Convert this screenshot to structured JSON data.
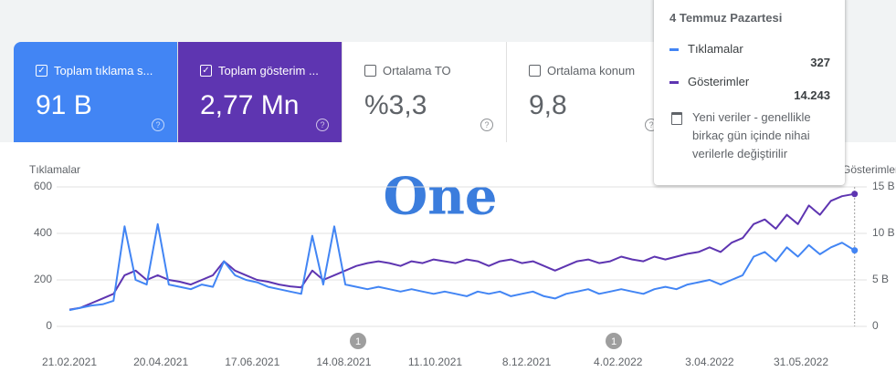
{
  "cards": [
    {
      "label": "Toplam tıklama s...",
      "value": "91 B",
      "checked": true
    },
    {
      "label": "Toplam gösterim ...",
      "value": "2,77 Mn",
      "checked": true
    },
    {
      "label": "Ortalama TO",
      "value": "%3,3",
      "checked": false
    },
    {
      "label": "Ortalama konum",
      "value": "9,8",
      "checked": false
    }
  ],
  "watermark": "One",
  "tooltip": {
    "title": "4 Temmuz Pazartesi",
    "rows": [
      {
        "name": "Tıklamalar",
        "value": "327"
      },
      {
        "name": "Gösterimler",
        "value": "14.243"
      }
    ],
    "note": "Yeni veriler - genellikle birkaç gün içinde nihai verilerle değiştirilir"
  },
  "annotations": [
    "1",
    "1"
  ],
  "chart_data": {
    "type": "line",
    "y_label": "Tıklamalar",
    "y2_label": "Gösterimler",
    "ylim": [
      0,
      600
    ],
    "yticks": [
      0,
      200,
      400,
      600
    ],
    "y2lim": [
      0,
      15000
    ],
    "y2ticks": [
      0,
      {
        "value": 5000,
        "label": "5 B"
      },
      {
        "value": 10000,
        "label": "10 B"
      },
      {
        "value": 15000,
        "label": "15 B"
      }
    ],
    "xticks": [
      "21.02.2021",
      "20.04.2021",
      "17.06.2021",
      "14.08.2021",
      "11.10.2021",
      "8.12.2021",
      "4.02.2022",
      "3.04.2022",
      "31.05.2022"
    ],
    "x": [
      "21.02.2021",
      "28.02.2021",
      "07.03.2021",
      "14.03.2021",
      "21.03.2021",
      "28.03.2021",
      "04.04.2021",
      "11.04.2021",
      "18.04.2021",
      "25.04.2021",
      "02.05.2021",
      "09.05.2021",
      "16.05.2021",
      "23.05.2021",
      "30.05.2021",
      "06.06.2021",
      "13.06.2021",
      "20.06.2021",
      "27.06.2021",
      "04.07.2021",
      "11.07.2021",
      "18.07.2021",
      "25.07.2021",
      "01.08.2021",
      "08.08.2021",
      "15.08.2021",
      "22.08.2021",
      "29.08.2021",
      "05.09.2021",
      "12.09.2021",
      "19.09.2021",
      "26.09.2021",
      "03.10.2021",
      "10.10.2021",
      "17.10.2021",
      "24.10.2021",
      "31.10.2021",
      "07.11.2021",
      "14.11.2021",
      "21.11.2021",
      "28.11.2021",
      "05.12.2021",
      "12.12.2021",
      "19.12.2021",
      "26.12.2021",
      "02.01.2022",
      "09.01.2022",
      "16.01.2022",
      "23.01.2022",
      "30.01.2022",
      "06.02.2022",
      "13.02.2022",
      "20.02.2022",
      "27.02.2022",
      "06.03.2022",
      "13.03.2022",
      "20.03.2022",
      "27.03.2022",
      "03.04.2022",
      "10.04.2022",
      "17.04.2022",
      "24.04.2022",
      "01.05.2022",
      "08.05.2022",
      "15.05.2022",
      "22.05.2022",
      "29.05.2022",
      "05.06.2022",
      "12.06.2022",
      "19.06.2022",
      "26.06.2022",
      "04.07.2022"
    ],
    "series": [
      {
        "name": "Tıklamalar",
        "color": "#4285f4",
        "values": [
          70,
          80,
          90,
          95,
          110,
          430,
          200,
          180,
          440,
          180,
          170,
          160,
          180,
          170,
          280,
          220,
          200,
          190,
          170,
          160,
          150,
          140,
          390,
          180,
          430,
          180,
          170,
          160,
          170,
          160,
          150,
          160,
          150,
          140,
          150,
          140,
          130,
          150,
          140,
          150,
          130,
          140,
          150,
          130,
          120,
          140,
          150,
          160,
          140,
          150,
          160,
          150,
          140,
          160,
          170,
          160,
          180,
          190,
          200,
          180,
          200,
          220,
          300,
          320,
          280,
          340,
          300,
          350,
          310,
          340,
          360,
          327
        ]
      },
      {
        "name": "Gösterimler",
        "color": "#5e35b1",
        "axis": "y2",
        "values": [
          1800,
          2000,
          2500,
          3000,
          3500,
          5500,
          6000,
          5000,
          5500,
          5000,
          4800,
          4500,
          5000,
          5500,
          7000,
          6000,
          5500,
          5000,
          4800,
          4500,
          4300,
          4200,
          6000,
          5000,
          5500,
          6000,
          6500,
          6800,
          7000,
          6800,
          6500,
          7000,
          6800,
          7200,
          7000,
          6800,
          7200,
          7000,
          6500,
          7000,
          7200,
          6800,
          7000,
          6500,
          6000,
          6500,
          7000,
          7200,
          6800,
          7000,
          7500,
          7200,
          7000,
          7500,
          7200,
          7500,
          7800,
          8000,
          8500,
          8000,
          9000,
          9500,
          11000,
          11500,
          10500,
          12000,
          11000,
          13000,
          12000,
          13500,
          14000,
          14243
        ]
      }
    ]
  }
}
